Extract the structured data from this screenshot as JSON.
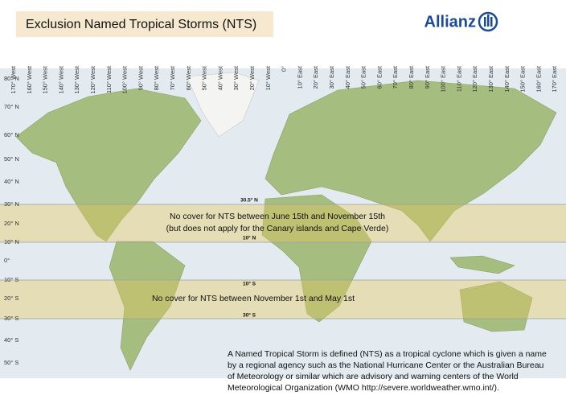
{
  "title": "Exclusion Named Tropical Storms (NTS)",
  "logo": "Allianz",
  "longitudes": [
    "170° West",
    "160° West",
    "150° West",
    "140° West",
    "130° West",
    "120° West",
    "110° West",
    "100° West",
    "90° West",
    "80° West",
    "70° West",
    "60° West",
    "50° West",
    "40° West",
    "30° West",
    "20° West",
    "10° West",
    "0°",
    "10° East",
    "20° East",
    "30° East",
    "40° East",
    "50° East",
    "60° East",
    "70° East",
    "80° East",
    "90° East",
    "100° East",
    "110° East",
    "120° East",
    "130° East",
    "140° East",
    "150° East",
    "160° East",
    "170° East"
  ],
  "latitudes": [
    "80° N",
    "70° N",
    "60° N",
    "50° N",
    "40° N",
    "30° N",
    "20° N",
    "10° N",
    "0°",
    "10° S",
    "20° S",
    "30° S",
    "40° S",
    "50° S"
  ],
  "band_labels": [
    "30.5° N",
    "10° N",
    "10° S",
    "30° S"
  ],
  "notes": {
    "north": [
      "No cover for NTS between June 15th and November 15th",
      "(but does not apply for the Canary islands and Cape Verde)"
    ],
    "south": "No cover for NTS between November 1st and May 1st"
  },
  "footer": [
    "A Named Tropical Storm is defined (NTS) as a tropical cyclone which is given a name",
    "by a regional agency such as the National Hurricane Center or the Australian Bureau",
    "of Meteorology or similar which are advisory and warning centers of the World",
    "Meteorological Organization (WMO http://severe.worldweather.wmo.int/)."
  ]
}
